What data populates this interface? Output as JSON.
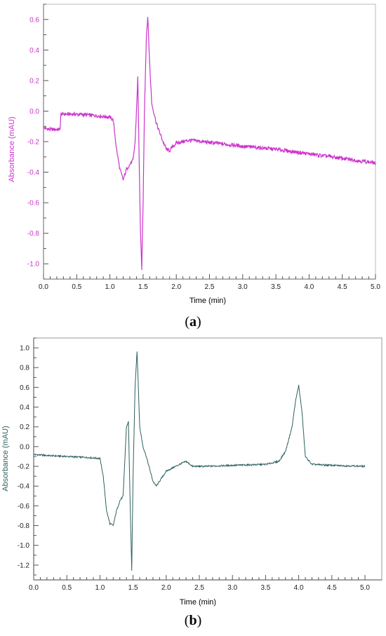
{
  "captions": {
    "a": "a",
    "b": "b"
  },
  "colors": {
    "trace_a": "#cc33cc",
    "ylabel_a": "#cc33cc",
    "trace_b": "#2f6060",
    "ylabel_b": "#2f6060"
  },
  "chart_data": [
    {
      "type": "line",
      "xlabel": "Time (min)",
      "ylabel": "Absorbance (mAU)",
      "xlim": [
        0.0,
        5.0
      ],
      "ylim": [
        -1.1,
        0.7
      ],
      "xticks": [
        "0.0",
        "0.5",
        "1.0",
        "1.5",
        "2.0",
        "2.5",
        "3.0",
        "3.5",
        "4.0",
        "4.5",
        "5.0"
      ],
      "yticks": [
        "0.6",
        "0.4",
        "0.2",
        "0.0",
        "-0.2",
        "-0.4",
        "-0.6",
        "-0.8",
        "-1.0"
      ],
      "grid": false,
      "series": [
        {
          "x": [
            0.0,
            0.1,
            0.25,
            0.26,
            0.3,
            0.5,
            0.8,
            1.0,
            1.05,
            1.1,
            1.15,
            1.2,
            1.25,
            1.3,
            1.35,
            1.38,
            1.4,
            1.42,
            1.44,
            1.46,
            1.48,
            1.5,
            1.52,
            1.55,
            1.57,
            1.6,
            1.63,
            1.7,
            1.8,
            1.85,
            1.9,
            1.95,
            2.0,
            2.2,
            2.4,
            2.6,
            3.0,
            3.5,
            4.0,
            4.5,
            5.0
          ],
          "y": [
            -0.11,
            -0.12,
            -0.12,
            -0.02,
            -0.02,
            -0.02,
            -0.03,
            -0.04,
            -0.06,
            -0.25,
            -0.38,
            -0.45,
            -0.38,
            -0.35,
            -0.32,
            -0.2,
            0.0,
            0.22,
            -0.3,
            -0.8,
            -1.03,
            -0.6,
            0.0,
            0.5,
            0.62,
            0.3,
            0.05,
            -0.08,
            -0.2,
            -0.25,
            -0.26,
            -0.23,
            -0.21,
            -0.19,
            -0.2,
            -0.21,
            -0.23,
            -0.25,
            -0.28,
            -0.31,
            -0.34
          ]
        }
      ]
    },
    {
      "type": "line",
      "xlabel": "Time (min)",
      "ylabel": "Absorbance (mAU)",
      "xlim": [
        0.0,
        5.0
      ],
      "ylim": [
        -1.35,
        1.1
      ],
      "xticks": [
        "0.0",
        "0.5",
        "1.0",
        "1.5",
        "2.0",
        "2.5",
        "3.0",
        "3.5",
        "4.0",
        "4.5",
        "5.0"
      ],
      "yticks": [
        "1.0",
        "0.8",
        "0.6",
        "0.4",
        "0.2",
        "0.0",
        "-0.2",
        "-0.4",
        "-0.6",
        "-0.8",
        "-1.0",
        "-1.2"
      ],
      "grid": false,
      "series": [
        {
          "x": [
            0.0,
            0.2,
            0.5,
            0.8,
            1.0,
            1.05,
            1.1,
            1.15,
            1.2,
            1.25,
            1.3,
            1.35,
            1.4,
            1.43,
            1.46,
            1.48,
            1.5,
            1.53,
            1.56,
            1.58,
            1.6,
            1.65,
            1.7,
            1.8,
            1.85,
            1.9,
            2.0,
            2.2,
            2.3,
            2.4,
            2.6,
            3.0,
            3.5,
            3.7,
            3.8,
            3.9,
            3.95,
            4.0,
            4.05,
            4.1,
            4.2,
            4.5,
            5.0
          ],
          "y": [
            -0.08,
            -0.09,
            -0.1,
            -0.11,
            -0.12,
            -0.3,
            -0.65,
            -0.78,
            -0.8,
            -0.65,
            -0.55,
            -0.5,
            0.2,
            0.25,
            -0.7,
            -1.25,
            -0.3,
            0.6,
            0.97,
            0.6,
            0.2,
            0.0,
            -0.1,
            -0.35,
            -0.4,
            -0.35,
            -0.25,
            -0.18,
            -0.15,
            -0.2,
            -0.2,
            -0.19,
            -0.18,
            -0.15,
            -0.05,
            0.2,
            0.45,
            0.62,
            0.35,
            -0.1,
            -0.18,
            -0.19,
            -0.2
          ]
        }
      ]
    }
  ]
}
